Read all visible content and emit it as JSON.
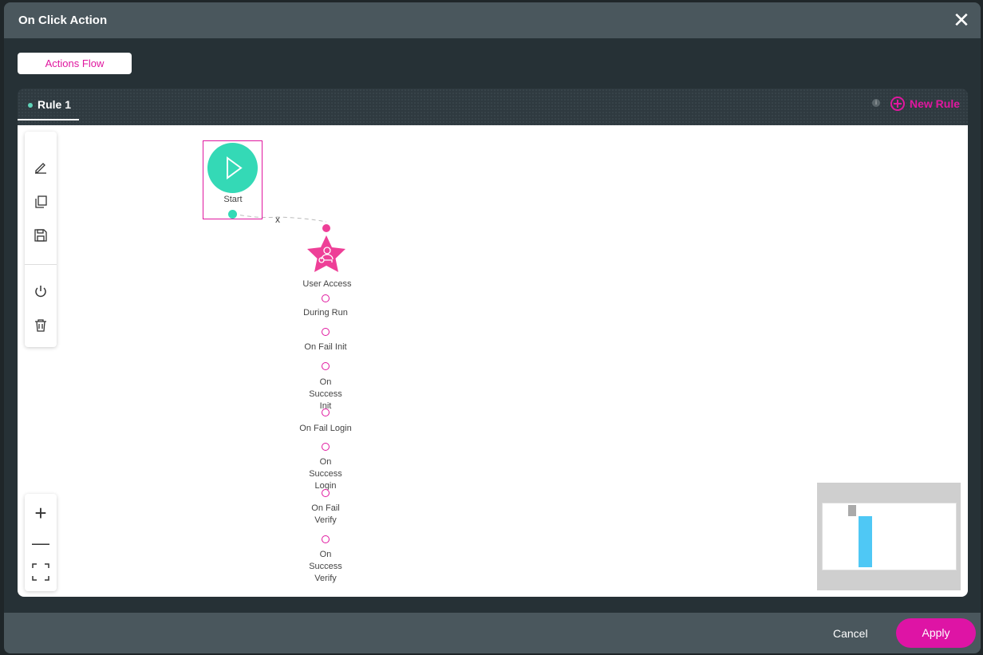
{
  "dialog": {
    "title": "On Click Action",
    "close_icon": "close-icon"
  },
  "actions_flow_label": "Actions Flow",
  "tabs": [
    {
      "label": "Rule 1",
      "active": true
    }
  ],
  "new_rule_label": "New Rule",
  "info_icon": "i",
  "toolbar": [
    "edit-icon",
    "copy-icon",
    "save-icon",
    "power-icon",
    "trash-icon"
  ],
  "zoom_controls": [
    "zoom-in-icon",
    "zoom-out-icon",
    "fit-screen-icon"
  ],
  "flow": {
    "start": {
      "label": "Start",
      "color": "#34d9b6"
    },
    "connector_label": "x",
    "action": {
      "label": "User Access",
      "color": "#ee3f97",
      "outputs": [
        "During Run",
        "On Fail Init",
        "On Success Init",
        "On Fail Login",
        "On Success Login",
        "On Fail Verify",
        "On Success Verify"
      ]
    }
  },
  "footer": {
    "cancel": "Cancel",
    "apply": "Apply"
  },
  "colors": {
    "accent": "#e0179f",
    "header": "#4a575d",
    "body": "#263136",
    "minimap_viewport": "#4fc8f5"
  }
}
